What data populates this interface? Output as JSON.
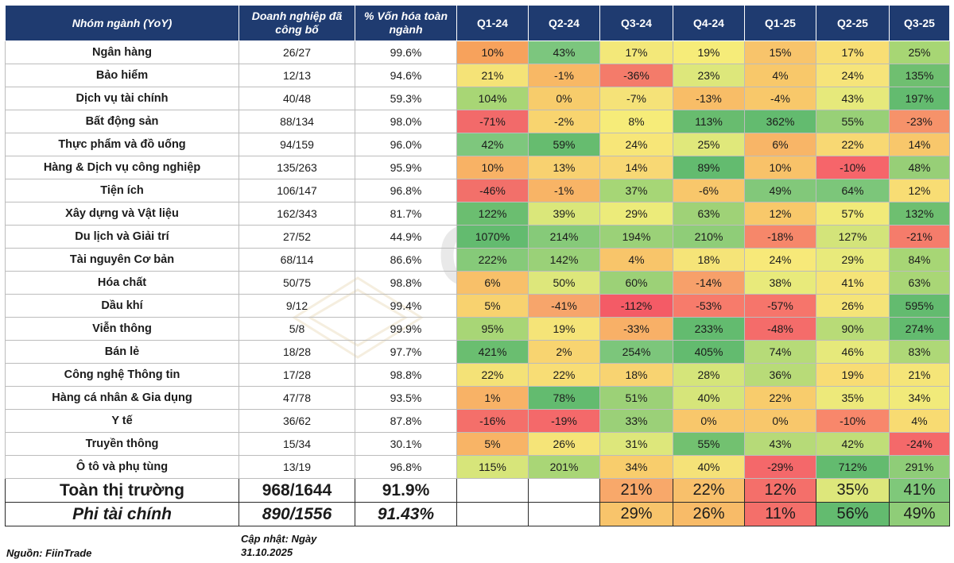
{
  "header": {
    "group": "Nhóm ngành (YoY)",
    "reported": "Doanh nghiệp đã công bố",
    "cap_share": "% Vốn hóa toàn ngành",
    "quarters": [
      "Q1-24",
      "Q2-24",
      "Q3-24",
      "Q4-24",
      "Q1-25",
      "Q2-25",
      "Q3-25"
    ]
  },
  "rows": [
    {
      "group": "Ngân hàng",
      "reported": "26/27",
      "cap": "99.6%",
      "q": [
        "10%",
        "43%",
        "17%",
        "19%",
        "15%",
        "17%",
        "25%"
      ],
      "c": [
        "#f7a25c",
        "#7cc67e",
        "#f3e879",
        "#f6ec79",
        "#f8c46b",
        "#f8de74",
        "#a7d674"
      ]
    },
    {
      "group": "Bảo hiểm",
      "reported": "12/13",
      "cap": "94.6%",
      "q": [
        "21%",
        "-1%",
        "-36%",
        "23%",
        "4%",
        "24%",
        "135%"
      ],
      "c": [
        "#f5e377",
        "#f8b865",
        "#f47b6a",
        "#dde77b",
        "#f8c86a",
        "#f6e47a",
        "#6fbf70"
      ]
    },
    {
      "group": "Dịch vụ tài chính",
      "reported": "40/48",
      "cap": "59.3%",
      "q": [
        "104%",
        "0%",
        "-7%",
        "-13%",
        "-4%",
        "43%",
        "197%"
      ],
      "c": [
        "#a8d675",
        "#f7cc6b",
        "#f5e278",
        "#f8bd67",
        "#f8c86a",
        "#e6e97b",
        "#63bb6f"
      ]
    },
    {
      "group": "Bất động sản",
      "reported": "88/134",
      "cap": "98.0%",
      "q": [
        "-71%",
        "-2%",
        "8%",
        "113%",
        "362%",
        "55%",
        "-23%"
      ],
      "c": [
        "#f26a6a",
        "#f8d46f",
        "#f6ec79",
        "#68bc6f",
        "#63bb6f",
        "#98d077",
        "#f6926a"
      ]
    },
    {
      "group": "Thực phẩm và đồ uống",
      "reported": "94/159",
      "cap": "96.0%",
      "q": [
        "42%",
        "59%",
        "24%",
        "25%",
        "6%",
        "22%",
        "14%"
      ],
      "c": [
        "#7ec77d",
        "#66bc6f",
        "#f7e678",
        "#e0e87b",
        "#f8b567",
        "#f8d873",
        "#f8c76b"
      ]
    },
    {
      "group": "Hàng & Dịch vụ công nghiệp",
      "reported": "135/263",
      "cap": "95.9%",
      "q": [
        "10%",
        "13%",
        "14%",
        "89%",
        "10%",
        "-10%",
        "48%"
      ],
      "c": [
        "#f8b265",
        "#f8d170",
        "#f8d874",
        "#63bb6f",
        "#f8c269",
        "#f6656a",
        "#97cf77"
      ]
    },
    {
      "group": "Tiện ích",
      "reported": "106/147",
      "cap": "96.8%",
      "q": [
        "-46%",
        "-1%",
        "37%",
        "-6%",
        "49%",
        "64%",
        "12%"
      ],
      "c": [
        "#f2706a",
        "#f8b466",
        "#a6d676",
        "#f8c76b",
        "#82c87a",
        "#7cc67a",
        "#f8dd74"
      ]
    },
    {
      "group": "Xây dựng và Vật liệu",
      "reported": "162/343",
      "cap": "81.7%",
      "q": [
        "122%",
        "39%",
        "29%",
        "63%",
        "12%",
        "57%",
        "132%"
      ],
      "c": [
        "#6bbe70",
        "#dae77a",
        "#eceb7a",
        "#9fd277",
        "#f8c86a",
        "#f1ea79",
        "#6ebf70"
      ]
    },
    {
      "group": "Du lịch và Giải trí",
      "reported": "27/52",
      "cap": "44.9%",
      "q": [
        "1070%",
        "214%",
        "194%",
        "210%",
        "-18%",
        "127%",
        "-21%"
      ],
      "c": [
        "#63bb6f",
        "#86ca79",
        "#9bd178",
        "#8fcd78",
        "#f6876a",
        "#d3e47a",
        "#f57c6b"
      ]
    },
    {
      "group": "Tài nguyên Cơ bản",
      "reported": "68/114",
      "cap": "86.6%",
      "q": [
        "222%",
        "142%",
        "4%",
        "18%",
        "24%",
        "29%",
        "84%"
      ],
      "c": [
        "#86ca79",
        "#9ad178",
        "#f8c56a",
        "#f5e478",
        "#f7e979",
        "#e8ea7b",
        "#a7d675"
      ]
    },
    {
      "group": "Hóa chất",
      "reported": "50/75",
      "cap": "98.8%",
      "q": [
        "6%",
        "50%",
        "60%",
        "-14%",
        "38%",
        "41%",
        "63%"
      ],
      "c": [
        "#f8c069",
        "#dde77b",
        "#9cd177",
        "#f7a06a",
        "#e8ea7b",
        "#f5e478",
        "#a9d676"
      ]
    },
    {
      "group": "Dầu khí",
      "reported": "9/12",
      "cap": "99.4%",
      "q": [
        "5%",
        "-41%",
        "-112%",
        "-53%",
        "-57%",
        "26%",
        "595%"
      ],
      "c": [
        "#f8d26f",
        "#f7a56b",
        "#f45b66",
        "#f77b6b",
        "#f6756b",
        "#f5e478",
        "#63bb6f"
      ]
    },
    {
      "group": "Viễn thông",
      "reported": "5/8",
      "cap": "99.9%",
      "q": [
        "95%",
        "19%",
        "-33%",
        "233%",
        "-48%",
        "90%",
        "274%"
      ],
      "c": [
        "#a8d676",
        "#f5e478",
        "#f8b067",
        "#63bb6f",
        "#f46c6a",
        "#b8db77",
        "#63bb6f"
      ]
    },
    {
      "group": "Bán lẻ",
      "reported": "18/28",
      "cap": "97.7%",
      "q": [
        "421%",
        "2%",
        "254%",
        "405%",
        "74%",
        "46%",
        "83%"
      ],
      "c": [
        "#6abe70",
        "#f8d470",
        "#7cc67b",
        "#63bb6f",
        "#b6db78",
        "#e6e97b",
        "#aed877"
      ]
    },
    {
      "group": "Công nghệ Thông tin",
      "reported": "17/28",
      "cap": "98.8%",
      "q": [
        "22%",
        "22%",
        "18%",
        "28%",
        "36%",
        "19%",
        "21%"
      ],
      "c": [
        "#f4e277",
        "#f8dd75",
        "#f8d371",
        "#d5e57a",
        "#b8db78",
        "#f8dc74",
        "#f5e578"
      ]
    },
    {
      "group": "Hàng cá nhân & Gia dụng",
      "reported": "47/78",
      "cap": "93.5%",
      "q": [
        "1%",
        "78%",
        "51%",
        "40%",
        "22%",
        "35%",
        "34%"
      ],
      "c": [
        "#f8b266",
        "#63bb6f",
        "#9cd177",
        "#d6e57a",
        "#f8cc6c",
        "#ede97a",
        "#f1ea7a"
      ]
    },
    {
      "group": "Y tế",
      "reported": "36/62",
      "cap": "87.8%",
      "q": [
        "-16%",
        "-19%",
        "33%",
        "0%",
        "0%",
        "-10%",
        "4%"
      ],
      "c": [
        "#f46f6a",
        "#f4696a",
        "#9bd078",
        "#f8c76b",
        "#f8c76b",
        "#f8876b",
        "#f8db72"
      ]
    },
    {
      "group": "Truyền thông",
      "reported": "15/34",
      "cap": "30.1%",
      "q": [
        "5%",
        "26%",
        "31%",
        "55%",
        "43%",
        "42%",
        "-24%"
      ],
      "c": [
        "#f8b466",
        "#f5e478",
        "#dde77b",
        "#72c170",
        "#b6da78",
        "#c0de78",
        "#f4696a"
      ]
    },
    {
      "group": "Ô tô và phụ tùng",
      "reported": "13/19",
      "cap": "96.8%",
      "q": [
        "115%",
        "201%",
        "34%",
        "40%",
        "-29%",
        "712%",
        "291%"
      ],
      "c": [
        "#d7e57a",
        "#a9d676",
        "#f8cd6c",
        "#f5e278",
        "#f4686a",
        "#63bb6f",
        "#8fcd78"
      ]
    }
  ],
  "totals": [
    {
      "group": "Toàn thị trường",
      "reported": "968/1644",
      "cap": "91.9%",
      "q": [
        "",
        "",
        "21%",
        "22%",
        "12%",
        "35%",
        "41%"
      ],
      "c": [
        "#ffffff",
        "#ffffff",
        "#f8a86a",
        "#f8c06b",
        "#f46f6a",
        "#dde77b",
        "#7fc87a"
      ]
    },
    {
      "group": "Phi tài chính",
      "reported": "890/1556",
      "cap": "91.43%",
      "q": [
        "",
        "",
        "29%",
        "26%",
        "11%",
        "56%",
        "49%"
      ],
      "c": [
        "#ffffff",
        "#ffffff",
        "#f8c46b",
        "#f8bb68",
        "#f46f6a",
        "#63bb6f",
        "#8fcd78"
      ]
    }
  ],
  "footer": {
    "source": "Nguồn: FiinTrade",
    "update_line1": "Cập nhật: Ngày",
    "update_line2": "31.10.2025"
  },
  "watermark": {
    "text": "CKG"
  }
}
